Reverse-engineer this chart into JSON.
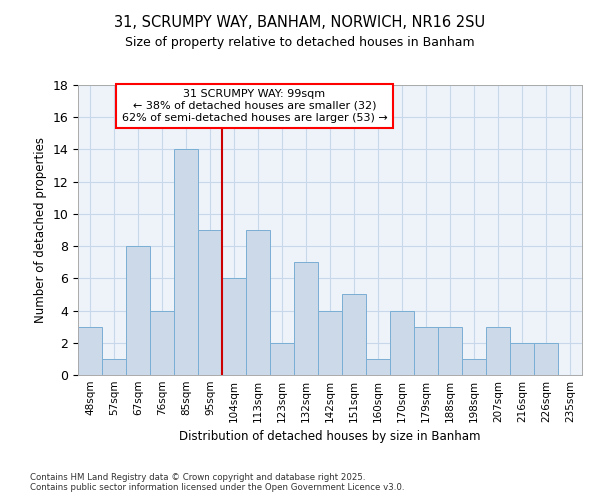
{
  "title1": "31, SCRUMPY WAY, BANHAM, NORWICH, NR16 2SU",
  "title2": "Size of property relative to detached houses in Banham",
  "xlabel": "Distribution of detached houses by size in Banham",
  "ylabel": "Number of detached properties",
  "bin_labels": [
    "48sqm",
    "57sqm",
    "67sqm",
    "76sqm",
    "85sqm",
    "95sqm",
    "104sqm",
    "113sqm",
    "123sqm",
    "132sqm",
    "142sqm",
    "151sqm",
    "160sqm",
    "170sqm",
    "179sqm",
    "188sqm",
    "198sqm",
    "207sqm",
    "216sqm",
    "226sqm",
    "235sqm"
  ],
  "values": [
    3,
    1,
    8,
    4,
    14,
    9,
    6,
    9,
    2,
    7,
    4,
    5,
    1,
    4,
    3,
    3,
    1,
    3,
    2,
    2,
    0
  ],
  "bar_color": "#ccd9e8",
  "bar_edge_color": "#7aaed4",
  "property_line_x": 5.5,
  "property_line_color": "#cc0000",
  "annotation_text": "31 SCRUMPY WAY: 99sqm\n← 38% of detached houses are smaller (32)\n62% of semi-detached houses are larger (53) →",
  "grid_color": "#c8d8ea",
  "background_color": "#eef3fa",
  "footer_text": "Contains HM Land Registry data © Crown copyright and database right 2025.\nContains public sector information licensed under the Open Government Licence v3.0.",
  "ylim": [
    0,
    18
  ],
  "yticks": [
    0,
    2,
    4,
    6,
    8,
    10,
    12,
    14,
    16,
    18
  ]
}
